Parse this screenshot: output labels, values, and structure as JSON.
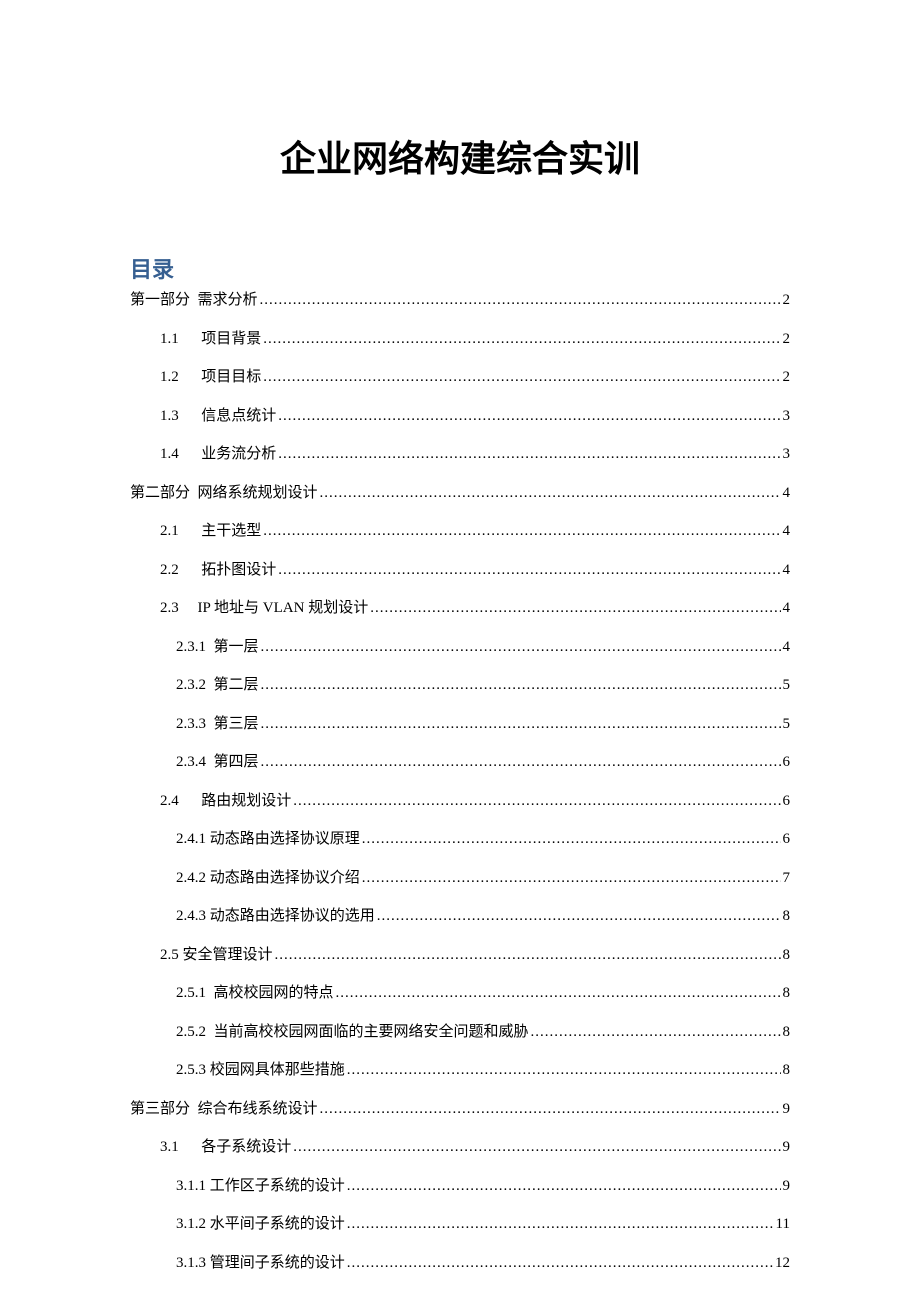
{
  "title": "企业网络构建综合实训",
  "toc_heading": "目录",
  "toc": [
    {
      "level": 0,
      "num": "第一部分",
      "gap": "  ",
      "text": "需求分析",
      "page": "2"
    },
    {
      "level": 1,
      "num": "1.1",
      "gap": "      ",
      "text": "项目背景",
      "page": "2"
    },
    {
      "level": 1,
      "num": "1.2",
      "gap": "      ",
      "text": "项目目标",
      "page": "2"
    },
    {
      "level": 1,
      "num": "1.3",
      "gap": "      ",
      "text": "信息点统计",
      "page": "3"
    },
    {
      "level": 1,
      "num": "1.4",
      "gap": "      ",
      "text": "业务流分析",
      "page": "3"
    },
    {
      "level": 0,
      "num": "第二部分",
      "gap": "  ",
      "text": "网络系统规划设计",
      "page": "4"
    },
    {
      "level": 1,
      "num": "2.1",
      "gap": "      ",
      "text": "主干选型",
      "page": "4"
    },
    {
      "level": 1,
      "num": "2.2",
      "gap": "      ",
      "text": "拓扑图设计",
      "page": "4"
    },
    {
      "level": 1,
      "num": "2.3",
      "gap": "     ",
      "text": "IP 地址与 VLAN 规划设计",
      "page": "4"
    },
    {
      "level": 2,
      "num": "2.3.1",
      "gap": "  ",
      "text": "第一层",
      "page": "4"
    },
    {
      "level": 2,
      "num": "2.3.2",
      "gap": "  ",
      "text": "第二层",
      "page": "5"
    },
    {
      "level": 2,
      "num": "2.3.3",
      "gap": "  ",
      "text": "第三层",
      "page": "5"
    },
    {
      "level": 2,
      "num": "2.3.4",
      "gap": "  ",
      "text": "第四层",
      "page": "6"
    },
    {
      "level": 1,
      "num": "2.4",
      "gap": "      ",
      "text": "路由规划设计",
      "page": "6"
    },
    {
      "level": 2,
      "num": "2.4.1",
      "gap": " ",
      "text": "动态路由选择协议原理",
      "page": "6"
    },
    {
      "level": 2,
      "num": "2.4.2",
      "gap": " ",
      "text": "动态路由选择协议介绍",
      "page": "7"
    },
    {
      "level": 2,
      "num": "2.4.3",
      "gap": " ",
      "text": "动态路由选择协议的选用",
      "page": "8"
    },
    {
      "level": 1,
      "num": "2.5",
      "gap": " ",
      "text": "安全管理设计",
      "page": "8"
    },
    {
      "level": 2,
      "num": "2.5.1",
      "gap": "  ",
      "text": "高校校园网的特点",
      "page": "8"
    },
    {
      "level": 2,
      "num": "2.5.2",
      "gap": "  ",
      "text": "当前高校校园网面临的主要网络安全问题和威胁",
      "page": "8"
    },
    {
      "level": 2,
      "num": "2.5.3",
      "gap": " ",
      "text": "校园网具体那些措施",
      "page": "8"
    },
    {
      "level": 0,
      "num": "第三部分",
      "gap": "  ",
      "text": "综合布线系统设计",
      "page": "9"
    },
    {
      "level": 1,
      "num": "3.1",
      "gap": "      ",
      "text": "各子系统设计",
      "page": "9"
    },
    {
      "level": 2,
      "num": "3.1.1",
      "gap": " ",
      "text": "工作区子系统的设计",
      "page": "9"
    },
    {
      "level": 2,
      "num": "3.1.2",
      "gap": " ",
      "text": "水平间子系统的设计",
      "page": "11"
    },
    {
      "level": 2,
      "num": "3.1.3",
      "gap": " ",
      "text": "管理间子系统的设计",
      "page": "12"
    }
  ]
}
